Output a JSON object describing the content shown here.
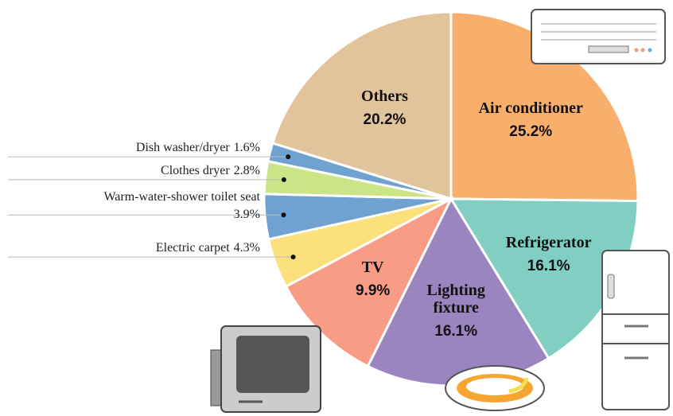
{
  "chart_data": {
    "type": "pie",
    "categories": [
      "Air conditioner",
      "Refrigerator",
      "Lighting fixture",
      "TV",
      "Electric carpet",
      "Warm-water-shower toilet seat",
      "Clothes dryer",
      "Dish washer/dryer",
      "Others"
    ],
    "values": [
      25.2,
      16.1,
      16.1,
      9.9,
      4.3,
      3.9,
      2.8,
      1.6,
      20.2
    ],
    "value_labels": [
      "25.2%",
      "16.1%",
      "16.1%",
      "9.9%",
      "4.3%",
      "3.9%",
      "2.8%",
      "1.6%",
      "20.2%"
    ],
    "colors": [
      "#f9ae6b",
      "#80cfc2",
      "#9a85c1",
      "#f99c86",
      "#fbe07b",
      "#6fa1d1",
      "#cbe487",
      "#6fa1d1",
      "#e1c49b"
    ]
  }
}
